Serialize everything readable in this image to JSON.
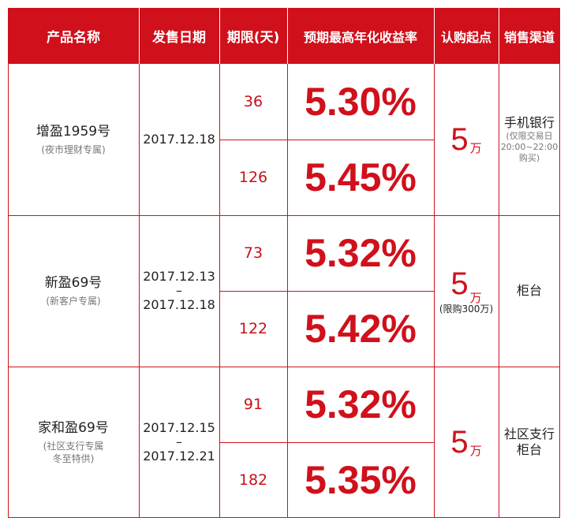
{
  "headers": [
    "产品名称",
    "发售日期",
    "期限(天)",
    "预期最高年化收益率",
    "认购起点",
    "销售渠道"
  ],
  "products": [
    {
      "name": "增盈1959号",
      "subtitle": "(夜市理财专属)",
      "date_start": "2017.12.18",
      "date_sep": "",
      "date_end": "",
      "terms": [
        {
          "days": "36",
          "rate": "5.30%"
        },
        {
          "days": "126",
          "rate": "5.45%"
        }
      ],
      "min_amount": "5",
      "min_unit": "万",
      "min_note": "",
      "channel": "手机银行",
      "channel_note_1": "(仅限交易日",
      "channel_note_2": "20:00~22:00",
      "channel_note_3": "购买)"
    },
    {
      "name": "新盈69号",
      "subtitle": "(新客户专属)",
      "date_start": "2017.12.13",
      "date_sep": "–",
      "date_end": "2017.12.18",
      "terms": [
        {
          "days": "73",
          "rate": "5.32%"
        },
        {
          "days": "122",
          "rate": "5.42%"
        }
      ],
      "min_amount": "5",
      "min_unit": "万",
      "min_note": "(限购300万)",
      "channel": "柜台"
    },
    {
      "name": "家和盈69号",
      "subtitle": "(社区支行专属",
      "subtitle_2": "冬至特供)",
      "date_start": "2017.12.15",
      "date_sep": "–",
      "date_end": "2017.12.21",
      "terms": [
        {
          "days": "91",
          "rate": "5.32%"
        },
        {
          "days": "182",
          "rate": "5.35%"
        }
      ],
      "min_amount": "5",
      "min_unit": "万",
      "min_note": "",
      "channel": "社区支行",
      "channel_2": "柜台"
    }
  ],
  "colors": {
    "accent": "#d0101b",
    "header_text": "#ffffff"
  }
}
